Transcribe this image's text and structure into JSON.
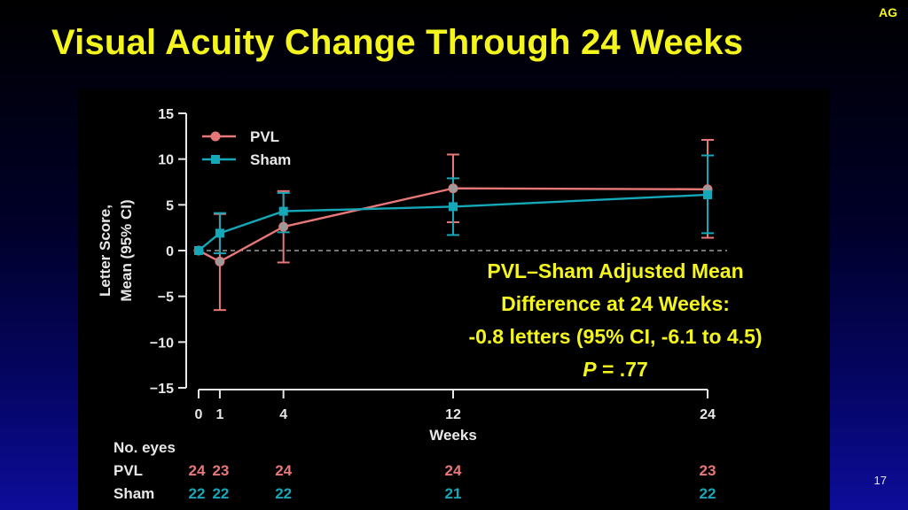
{
  "corner_tag": "AG",
  "title": "Visual Acuity Change Through 24 Weeks",
  "page_number": "17",
  "colors": {
    "title": "#f5f51e",
    "pvl": "#e87878",
    "sham": "#14a8b8",
    "axis": "#e8e8e8"
  },
  "chart_data": {
    "type": "line",
    "xlabel": "Weeks",
    "ylabel_line1": "Letter Score,",
    "ylabel_line2": "Mean (95% CI)",
    "xlim": [
      0,
      24
    ],
    "ylim": [
      -15,
      15
    ],
    "x_ticks": [
      0,
      1,
      4,
      12,
      24
    ],
    "y_ticks": [
      15,
      10,
      5,
      0,
      -5,
      -10,
      -15
    ],
    "y_tick_labels": [
      "15",
      "10",
      "5",
      "0",
      "−5",
      "−10",
      "−15"
    ],
    "reference_line_y": 0,
    "legend_position": "top-left",
    "series": [
      {
        "name": "PVL",
        "marker": "circle",
        "color": "#e87878",
        "x": [
          0,
          1,
          4,
          12,
          24
        ],
        "y": [
          0,
          -1.2,
          2.6,
          6.8,
          6.7
        ],
        "ci_low": [
          0,
          -6.5,
          -1.3,
          3.1,
          1.4
        ],
        "ci_high": [
          0,
          4.0,
          6.5,
          10.5,
          12.1
        ]
      },
      {
        "name": "Sham",
        "marker": "square",
        "color": "#14a8b8",
        "x": [
          0,
          1,
          4,
          12,
          24
        ],
        "y": [
          0,
          1.9,
          4.3,
          4.8,
          6.1
        ],
        "ci_low": [
          0,
          -0.3,
          2.0,
          1.7,
          1.9
        ],
        "ci_high": [
          0,
          4.1,
          6.3,
          7.9,
          10.4
        ]
      }
    ],
    "no_eyes": {
      "heading": "No. eyes",
      "rows": [
        {
          "label": "PVL",
          "counts": [
            "24",
            "23",
            "24",
            "24",
            "23"
          ]
        },
        {
          "label": "Sham",
          "counts": [
            "22",
            "22",
            "22",
            "21",
            "22"
          ]
        }
      ]
    }
  },
  "annotation": {
    "line1": "PVL–Sham Adjusted Mean",
    "line2": "Difference at 24 Weeks:",
    "line3": "-0.8 letters (95% CI, -6.1 to 4.5)",
    "p_label": "P",
    "p_value": " = .77"
  }
}
